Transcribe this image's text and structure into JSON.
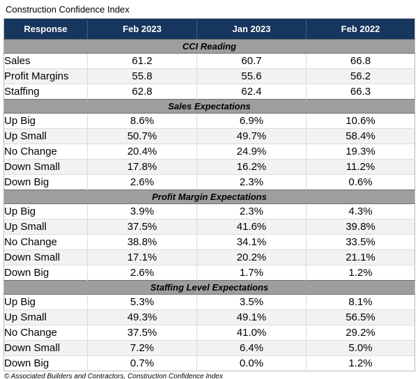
{
  "colors": {
    "header_bg": "#17365d",
    "header_text": "#ffffff",
    "section_band_bg": "#9e9e9e",
    "row_alt_bg": "#f2f2f2",
    "row_bg": "#ffffff",
    "grid_line": "#dcdcdc",
    "text": "#000000"
  },
  "chart_data": {
    "type": "table",
    "title": "Construction Confidence Index",
    "columns": [
      "Response",
      "Feb 2023",
      "Jan 2023",
      "Feb 2022"
    ],
    "sections": [
      {
        "header": "CCI Reading",
        "rows": [
          {
            "label": "Sales",
            "values": [
              "61.2",
              "60.7",
              "66.8"
            ]
          },
          {
            "label": "Profit Margins",
            "values": [
              "55.8",
              "55.6",
              "56.2"
            ]
          },
          {
            "label": "Staffing",
            "values": [
              "62.8",
              "62.4",
              "66.3"
            ]
          }
        ]
      },
      {
        "header": "Sales Expectations",
        "rows": [
          {
            "label": "Up Big",
            "values": [
              "8.6%",
              "6.9%",
              "10.6%"
            ]
          },
          {
            "label": "Up Small",
            "values": [
              "50.7%",
              "49.7%",
              "58.4%"
            ]
          },
          {
            "label": "No Change",
            "values": [
              "20.4%",
              "24.9%",
              "19.3%"
            ]
          },
          {
            "label": "Down Small",
            "values": [
              "17.8%",
              "16.2%",
              "11.2%"
            ]
          },
          {
            "label": "Down Big",
            "values": [
              "2.6%",
              "2.3%",
              "0.6%"
            ]
          }
        ]
      },
      {
        "header": "Profit Margin Expectations",
        "rows": [
          {
            "label": "Up Big",
            "values": [
              "3.9%",
              "2.3%",
              "4.3%"
            ]
          },
          {
            "label": "Up Small",
            "values": [
              "37.5%",
              "41.6%",
              "39.8%"
            ]
          },
          {
            "label": "No Change",
            "values": [
              "38.8%",
              "34.1%",
              "33.5%"
            ]
          },
          {
            "label": "Down Small",
            "values": [
              "17.1%",
              "20.2%",
              "21.1%"
            ]
          },
          {
            "label": "Down Big",
            "values": [
              "2.6%",
              "1.7%",
              "1.2%"
            ]
          }
        ]
      },
      {
        "header": "Staffing Level Expectations",
        "rows": [
          {
            "label": "Up Big",
            "values": [
              "5.3%",
              "3.5%",
              "8.1%"
            ]
          },
          {
            "label": "Up Small",
            "values": [
              "49.3%",
              "49.1%",
              "56.5%"
            ]
          },
          {
            "label": "No Change",
            "values": [
              "37.5%",
              "41.0%",
              "29.2%"
            ]
          },
          {
            "label": "Down Small",
            "values": [
              "7.2%",
              "6.4%",
              "5.0%"
            ]
          },
          {
            "label": "Down Big",
            "values": [
              "0.7%",
              "0.0%",
              "1.2%"
            ]
          }
        ]
      }
    ],
    "source": "© Associated Builders and Contractors, Construction Confidence Index"
  }
}
